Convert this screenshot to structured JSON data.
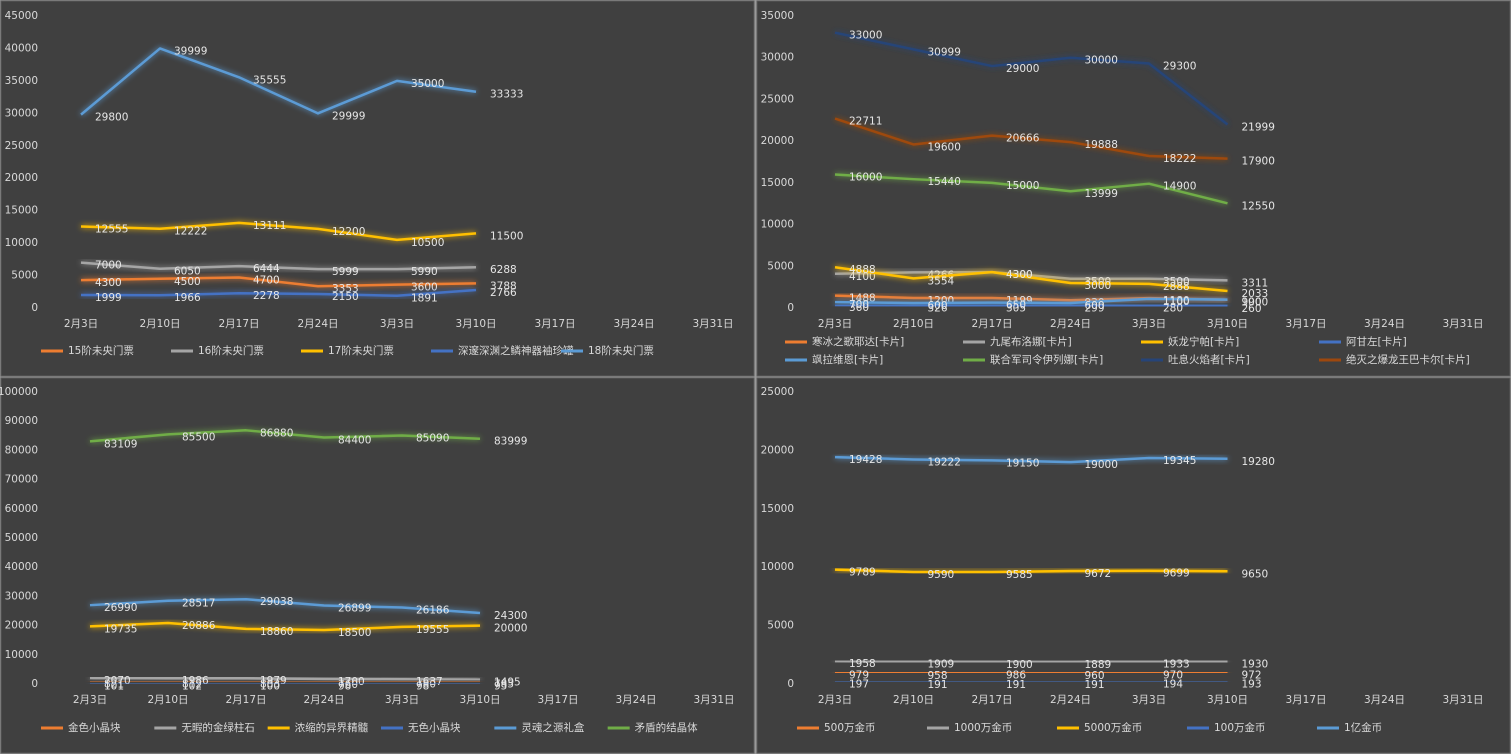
{
  "chart_data": [
    {
      "type": "line",
      "categories": [
        "2月3日",
        "2月10日",
        "2月17日",
        "2月24日",
        "3月3日",
        "3月10日",
        "3月17日",
        "3月24日",
        "3月31日"
      ],
      "ylim": [
        0,
        45000
      ],
      "yticks": [
        0,
        5000,
        10000,
        15000,
        20000,
        25000,
        30000,
        35000,
        40000,
        45000
      ],
      "grid": false,
      "series": [
        {
          "name": "15阶未央门票",
          "color": "#ed7d31",
          "values": [
            4300,
            4500,
            4700,
            3353,
            3600,
            3788,
            null,
            null,
            null
          ]
        },
        {
          "name": "16阶未央门票",
          "color": "#a5a5a5",
          "values": [
            7000,
            6050,
            6444,
            5999,
            5990,
            6288,
            null,
            null,
            null
          ]
        },
        {
          "name": "17阶未央门票",
          "color": "#ffc000",
          "values": [
            12555,
            12222,
            13111,
            12200,
            10500,
            11500,
            null,
            null,
            null
          ]
        },
        {
          "name": "深邃深渊之鳞神器袖珍罐",
          "color": "#4472c4",
          "values": [
            1999,
            1966,
            2278,
            2150,
            1891,
            2766,
            null,
            null,
            null
          ]
        },
        {
          "name": "18阶未央门票",
          "color": "#5b9bd5",
          "values": [
            29800,
            39999,
            35555,
            29999,
            35000,
            33333,
            null,
            null,
            null
          ]
        }
      ]
    },
    {
      "type": "line",
      "categories": [
        "2月3日",
        "2月10日",
        "2月17日",
        "2月24日",
        "3月3日",
        "3月10日",
        "3月17日",
        "3月24日",
        "3月31日"
      ],
      "ylim": [
        0,
        35000
      ],
      "yticks": [
        0,
        5000,
        10000,
        15000,
        20000,
        25000,
        30000,
        35000
      ],
      "grid": false,
      "series": [
        {
          "name": "寒冰之歌耶达[卡片]",
          "color": "#ed7d31",
          "values": [
            1488,
            1200,
            1199,
            930,
            1180,
            990,
            null,
            null,
            null
          ]
        },
        {
          "name": "九尾布洛娜[卡片]",
          "color": "#a5a5a5",
          "values": [
            4100,
            4266,
            4300,
            3500,
            3500,
            3311,
            null,
            null,
            null
          ]
        },
        {
          "name": "妖龙宁帕[卡片]",
          "color": "#ffc000",
          "values": [
            4888,
            3554,
            4300,
            3000,
            2888,
            2033,
            null,
            null,
            null
          ]
        },
        {
          "name": "阿甘左[卡片]",
          "color": "#4472c4",
          "values": [
            360,
            326,
            305,
            299,
            280,
            260,
            null,
            null,
            null
          ]
        },
        {
          "name": "飒拉维恩[卡片]",
          "color": "#5b9bd5",
          "values": [
            700,
            600,
            650,
            600,
            1100,
            1000,
            null,
            null,
            null
          ]
        },
        {
          "name": "联合军司令伊列娜[卡片]",
          "color": "#70ad47",
          "values": [
            16000,
            15440,
            15000,
            13999,
            14900,
            12550,
            null,
            null,
            null
          ]
        },
        {
          "name": "吐息火焰者[卡片]",
          "color": "#264478",
          "values": [
            33000,
            30999,
            29000,
            30000,
            29300,
            21999,
            null,
            null,
            null
          ]
        },
        {
          "name": "绝灭之爆龙王巴卡尔[卡片]",
          "color": "#9e480e",
          "values": [
            22711,
            19600,
            20666,
            19888,
            18222,
            17900,
            null,
            null,
            null
          ]
        }
      ]
    },
    {
      "type": "line",
      "categories": [
        "2月3日",
        "2月10日",
        "2月17日",
        "2月24日",
        "3月3日",
        "3月10日",
        "3月17日",
        "3月24日",
        "3月31日"
      ],
      "ylim": [
        0,
        100000
      ],
      "yticks": [
        0,
        10000,
        20000,
        30000,
        40000,
        50000,
        60000,
        70000,
        80000,
        90000,
        100000
      ],
      "grid": false,
      "series": [
        {
          "name": "金色小晶块",
          "color": "#ed7d31",
          "values": [
            821,
            812,
            803,
            760,
            780,
            785,
            null,
            null,
            null
          ]
        },
        {
          "name": "无暇的金绿柱石",
          "color": "#a5a5a5",
          "values": [
            2070,
            1986,
            1979,
            1700,
            1637,
            1495,
            null,
            null,
            null
          ]
        },
        {
          "name": "浓缩的异界精髓",
          "color": "#ffc000",
          "values": [
            19735,
            20886,
            18860,
            18500,
            19555,
            20000,
            null,
            null,
            null
          ]
        },
        {
          "name": "无色小晶块",
          "color": "#4472c4",
          "values": [
            101,
            102,
            100,
            98,
            98,
            95,
            null,
            null,
            null
          ]
        },
        {
          "name": "灵魂之源礼盒",
          "color": "#5b9bd5",
          "values": [
            26990,
            28517,
            29038,
            26899,
            26186,
            24300,
            null,
            null,
            null
          ]
        },
        {
          "name": "矛盾的结晶体",
          "color": "#70ad47",
          "values": [
            83109,
            85500,
            86880,
            84400,
            85090,
            83999,
            null,
            null,
            null
          ]
        }
      ]
    },
    {
      "type": "line",
      "categories": [
        "2月3日",
        "2月10日",
        "2月17日",
        "2月24日",
        "3月3日",
        "3月10日",
        "3月17日",
        "3月24日",
        "3月31日"
      ],
      "ylim": [
        0,
        25000
      ],
      "yticks": [
        0,
        5000,
        10000,
        15000,
        20000,
        25000
      ],
      "grid": false,
      "series": [
        {
          "name": "500万金币",
          "color": "#ed7d31",
          "values": [
            979,
            958,
            986,
            960,
            970,
            972,
            null,
            null,
            null
          ]
        },
        {
          "name": "1000万金币",
          "color": "#a5a5a5",
          "values": [
            1958,
            1909,
            1900,
            1889,
            1933,
            1930,
            null,
            null,
            null
          ]
        },
        {
          "name": "5000万金币",
          "color": "#ffc000",
          "values": [
            9789,
            9590,
            9585,
            9672,
            9699,
            9650,
            null,
            null,
            null
          ]
        },
        {
          "name": "100万金币",
          "color": "#4472c4",
          "values": [
            197,
            191,
            191,
            191,
            194,
            193,
            null,
            null,
            null
          ]
        },
        {
          "name": "1亿金币",
          "color": "#5b9bd5",
          "values": [
            19428,
            19222,
            19150,
            19000,
            19345,
            19280,
            null,
            null,
            null
          ]
        }
      ]
    }
  ]
}
